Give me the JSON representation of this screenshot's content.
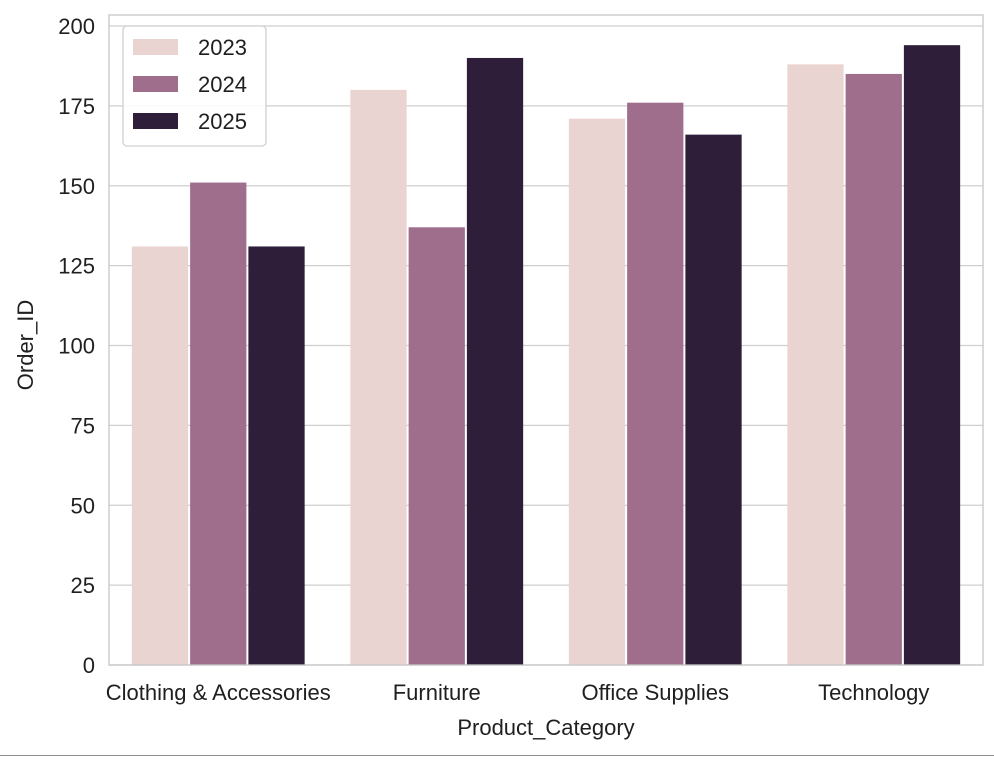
{
  "chart_data": {
    "type": "bar",
    "categories": [
      "Clothing & Accessories",
      "Furniture",
      "Office Supplies",
      "Technology"
    ],
    "series": [
      {
        "name": "2023",
        "values": [
          131,
          180,
          171,
          188
        ]
      },
      {
        "name": "2024",
        "values": [
          151,
          137,
          176,
          185
        ]
      },
      {
        "name": "2025",
        "values": [
          131,
          190,
          166,
          194
        ]
      }
    ],
    "colors": [
      "#ead4d1",
      "#a06e8d",
      "#2e1e3a"
    ],
    "xlabel": "Product_Category",
    "ylabel": "Order_ID",
    "yticks": [
      "0",
      "25",
      "50",
      "75",
      "100",
      "125",
      "150",
      "175",
      "200"
    ],
    "ylim": [
      0,
      200
    ],
    "grid": "horizontal",
    "legend_position": "top-left"
  }
}
